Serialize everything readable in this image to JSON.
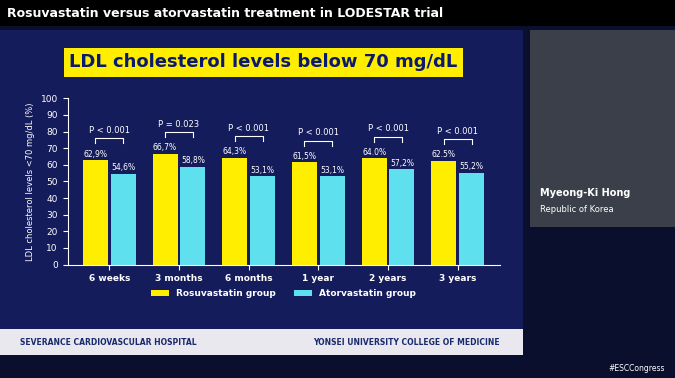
{
  "chart_data": {
    "type": "bar",
    "subtitle": "Rosuvastatin versus atorvastatin treatment in LODESTAR trial",
    "title": "LDL cholesterol levels below 70 mg/dL",
    "y_label": "LDL cholesterol levels <70 mg/dL (%)",
    "categories": [
      "6 weeks",
      "3 months",
      "6 months",
      "1 year",
      "2 years",
      "3 years"
    ],
    "series": [
      {
        "name": "Rosuvastatin group",
        "color": "#ffee00",
        "values": [
          62.9,
          66.7,
          64.3,
          61.5,
          64.0,
          62.5
        ],
        "value_labels": [
          "62,9%",
          "66,7%",
          "64,3%",
          "61,5%",
          "64.0%",
          "62.5%"
        ]
      },
      {
        "name": "Atorvastatin group",
        "color": "#5fe0ef",
        "values": [
          54.6,
          58.8,
          53.1,
          53.1,
          57.2,
          55.2
        ],
        "value_labels": [
          "54,6%",
          "58,8%",
          "53,1%",
          "53,1%",
          "57,2%",
          "55,2%"
        ]
      }
    ],
    "p_values": [
      "P < 0.001",
      "P = 0.023",
      "P < 0.001",
      "P < 0.001",
      "P < 0.001",
      "P < 0.001"
    ],
    "ylim": [
      0,
      100
    ],
    "yticks": [
      0,
      10,
      20,
      30,
      40,
      50,
      60,
      70,
      80,
      90,
      100
    ],
    "data_labels": true,
    "grid": false,
    "legend": "upper center",
    "annotations": [
      "SEVERANCE CARDIOVASCULAR HOSPITAL",
      "YONSEI UNIVERSITY COLLEGE OF MEDICINE",
      "Myeong-Ki Hong",
      "Republic of Korea",
      "#ESCCongress"
    ]
  }
}
